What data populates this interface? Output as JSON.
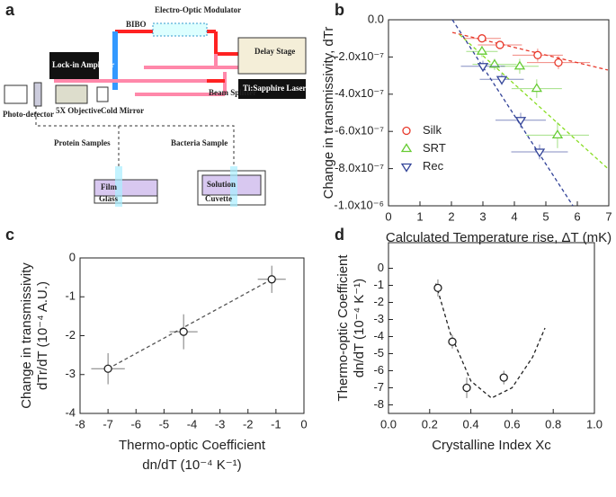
{
  "panels": [
    "a",
    "b",
    "c",
    "d"
  ],
  "diagram": {
    "bibo": "BIBO",
    "modulator": "Electro-Optic Modulator",
    "delay": "Delay Stage",
    "splitter": "Beam Splitter",
    "laser": "Ti:Sapphire Laser",
    "lockin": "Lock-in Amplifier",
    "detector": "Photo-detector",
    "objective": "5X Objective",
    "mirror": "Cold Mirror",
    "protein": "Protein Samples",
    "bacteria": "Bacteria Sample",
    "film": "Film",
    "glass": "Glass",
    "solution": "Solution",
    "cuvette": "Cuvette"
  },
  "chart_data": [
    {
      "type": "scatter",
      "xlabel": [
        "Calculated Temperature rise, ΔT (mK)"
      ],
      "ylabel": [
        "Change in transmissivity, dTr"
      ],
      "xlim": [
        0,
        7
      ],
      "xticks": [
        0,
        1,
        2,
        3,
        4,
        5,
        6,
        7
      ],
      "ylim": [
        -1e-06,
        0
      ],
      "yticks": [
        {
          "value": 0,
          "label": "0.0"
        },
        {
          "value": -2e-07,
          "label": "-2.0x10⁻⁷"
        },
        {
          "value": -4e-07,
          "label": "-4.0x10⁻⁷"
        },
        {
          "value": -6e-07,
          "label": "-6.0x10⁻⁷"
        },
        {
          "value": -8e-07,
          "label": "-8.0x10⁻⁷"
        },
        {
          "value": -1e-06,
          "label": "-1.0x10⁻⁶"
        }
      ],
      "legend": "left",
      "series": [
        {
          "name": "Silk",
          "color": "#e8392b",
          "marker": "circle",
          "x": [
            2.97,
            3.54,
            4.74,
            5.4
          ],
          "values": [
            -1e-07,
            -1.35e-07,
            -1.9e-07,
            -2.3e-07
          ],
          "xerr": [
            0.6,
            0.7,
            0.8,
            1.0
          ],
          "yerr": [
            2e-08,
            2e-08,
            3.5e-08,
            3.5e-08
          ]
        },
        {
          "name": "SRT",
          "color": "#66cc33",
          "marker": "triangle-up",
          "x": [
            2.97,
            3.37,
            4.17,
            4.71,
            5.37
          ],
          "values": [
            -1.7e-07,
            -2.4e-07,
            -2.5e-07,
            -3.7e-07,
            -6.2e-07
          ],
          "xerr": [
            0.5,
            0.7,
            0.6,
            0.8,
            1.0
          ],
          "yerr": [
            3e-08,
            3e-08,
            4e-08,
            5e-08,
            7e-08
          ]
        },
        {
          "name": "Rec",
          "color": "#334499",
          "marker": "triangle-down",
          "x": [
            3.0,
            3.6,
            4.2,
            4.8
          ],
          "values": [
            -2.5e-07,
            -3.2e-07,
            -5.4e-07,
            -7.1e-07
          ],
          "xerr": [
            0.7,
            0.7,
            0.8,
            0.9
          ],
          "yerr": [
            3e-08,
            3e-08,
            4e-08,
            4e-08
          ]
        }
      ],
      "fit_lines": [
        {
          "color": "#e8392b",
          "x": [
            2.03,
            6.97
          ],
          "y": [
            -6.8e-08,
            -2.7e-07
          ]
        },
        {
          "color": "#88dd22",
          "x": [
            2.26,
            6.97
          ],
          "y": [
            -8e-08,
            -8e-07
          ]
        },
        {
          "color": "#334499",
          "x": [
            2.03,
            5.86
          ],
          "y": [
            0,
            -1e-06
          ]
        }
      ]
    },
    {
      "type": "scatter",
      "xlabel": [
        "Thermo-optic Coefficient",
        "dn/dT (10⁻⁴ K⁻¹)"
      ],
      "ylabel": [
        "Change in transmissivity",
        "dTr/dT (10⁻⁴ A.U.)"
      ],
      "xlim": [
        -8,
        0
      ],
      "xticks": [
        -8,
        -7,
        -6,
        -5,
        -4,
        -3,
        -2,
        -1,
        0
      ],
      "ylim": [
        -4,
        0
      ],
      "yticks": [
        0,
        -1,
        -2,
        -3,
        -4
      ],
      "series": [
        {
          "color": "#222222",
          "marker": "circle",
          "x": [
            -7.0,
            -4.3,
            -1.15
          ],
          "values": [
            -2.85,
            -1.9,
            -0.55
          ],
          "xerr": [
            0.6,
            0.5,
            0.5
          ],
          "yerr": [
            0.4,
            0.45,
            0.35
          ]
        }
      ],
      "fit_lines": [
        {
          "color": "#555555",
          "x": [
            -7.0,
            -1.15
          ],
          "y": [
            -2.85,
            -0.55
          ]
        }
      ]
    },
    {
      "type": "scatter",
      "xlabel": [
        "Crystalline Index Xc"
      ],
      "ylabel": [
        "Thermo-optic Coefficient",
        "dn/dT (10⁻⁴ K⁻¹)"
      ],
      "xlim": [
        0,
        1
      ],
      "xticks": [
        {
          "value": 0,
          "label": "0.0"
        },
        0.2,
        0.4,
        0.6,
        0.8,
        {
          "value": 1,
          "label": "1.0"
        }
      ],
      "ylim": [
        -8.5,
        1.5
      ],
      "yticks": [
        0,
        -1,
        -2,
        -3,
        -4,
        -5,
        -6,
        -7,
        -8
      ],
      "series": [
        {
          "color": "#222222",
          "marker": "circle",
          "x": [
            0.24,
            0.31,
            0.38,
            0.56
          ],
          "values": [
            -1.15,
            -4.3,
            -7.0,
            -6.4
          ],
          "xerr": [
            0.01,
            0.01,
            0.01,
            0.01
          ],
          "yerr": [
            0.5,
            0.4,
            0.6,
            0.4
          ]
        }
      ],
      "fit_lines": [
        {
          "color": "#222222",
          "x": [
            0.23,
            0.3,
            0.4,
            0.5,
            0.6,
            0.7,
            0.76
          ],
          "y": [
            -0.9,
            -3.8,
            -6.6,
            -7.6,
            -7.0,
            -5.2,
            -3.5
          ]
        }
      ]
    }
  ]
}
